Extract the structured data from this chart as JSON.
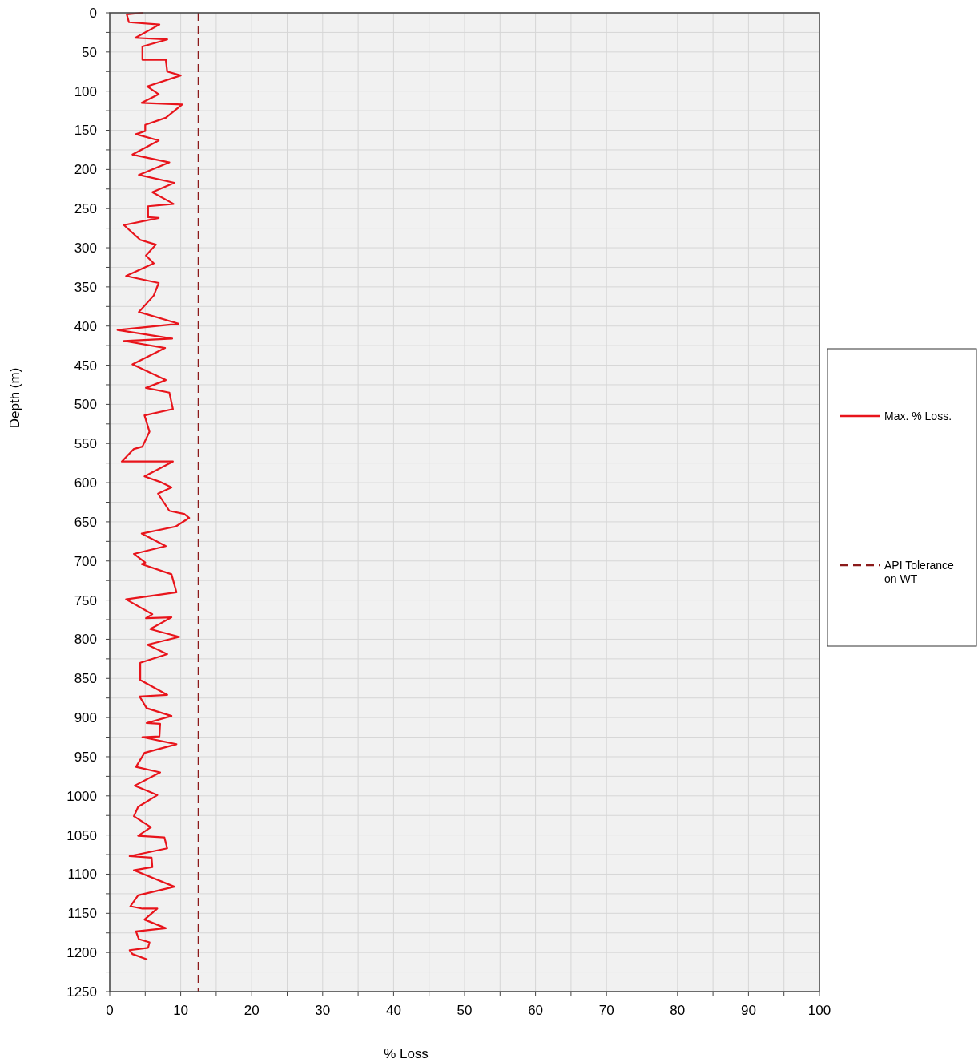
{
  "chart_data": {
    "type": "line",
    "xlabel": "% Loss",
    "ylabel": "Depth (m)",
    "xlim": [
      0,
      100
    ],
    "ylim": [
      1250,
      0
    ],
    "xticks": [
      0,
      {
        "value": 5,
        "label": null
      },
      10,
      {
        "value": 15,
        "label": null
      },
      20,
      {
        "value": 25,
        "label": null
      },
      30,
      {
        "value": 35,
        "label": null
      },
      40,
      {
        "value": 45,
        "label": null
      },
      50,
      {
        "value": 55,
        "label": null
      },
      60,
      {
        "value": 65,
        "label": null
      },
      70,
      {
        "value": 75,
        "label": null
      },
      80,
      {
        "value": 85,
        "label": null
      },
      90,
      {
        "value": 95,
        "label": null
      },
      100
    ],
    "yticks": [
      0,
      {
        "value": 25,
        "label": null
      },
      50,
      {
        "value": 75,
        "label": null
      },
      100,
      {
        "value": 125,
        "label": null
      },
      150,
      {
        "value": 175,
        "label": null
      },
      200,
      {
        "value": 225,
        "label": null
      },
      250,
      {
        "value": 275,
        "label": null
      },
      300,
      {
        "value": 325,
        "label": null
      },
      350,
      {
        "value": 375,
        "label": null
      },
      400,
      {
        "value": 425,
        "label": null
      },
      450,
      {
        "value": 475,
        "label": null
      },
      500,
      {
        "value": 525,
        "label": null
      },
      550,
      {
        "value": 575,
        "label": null
      },
      600,
      {
        "value": 625,
        "label": null
      },
      650,
      {
        "value": 675,
        "label": null
      },
      700,
      {
        "value": 725,
        "label": null
      },
      750,
      {
        "value": 775,
        "label": null
      },
      800,
      {
        "value": 825,
        "label": null
      },
      850,
      {
        "value": 875,
        "label": null
      },
      900,
      {
        "value": 925,
        "label": null
      },
      950,
      {
        "value": 975,
        "label": null
      },
      1000,
      {
        "value": 1025,
        "label": null
      },
      1050,
      {
        "value": 1075,
        "label": null
      },
      1100,
      {
        "value": 1125,
        "label": null
      },
      1150,
      {
        "value": 1175,
        "label": null
      },
      1200,
      {
        "value": 1225,
        "label": null
      },
      1250
    ],
    "grid": true,
    "legend": "right",
    "line_style": "solid",
    "series": [
      {
        "name": "Max. % Loss.",
        "color": "#e8141b",
        "x": [
          4.7,
          2.4,
          2.7,
          7.0,
          3.6,
          8.1,
          4.6,
          4.6,
          7.9,
          8.1,
          10.0,
          5.3,
          6.9,
          4.5,
          10.2,
          7.9,
          5.0,
          5.0,
          3.7,
          6.9,
          3.2,
          8.4,
          4.1,
          9.1,
          6.0,
          9.0,
          5.4,
          5.4,
          6.9,
          2.0,
          4.3,
          6.5,
          5.1,
          6.2,
          2.3,
          6.9,
          6.2,
          4.1,
          9.7,
          1.1,
          8.8,
          2.0,
          7.8,
          3.2,
          7.9,
          5.1,
          8.4,
          8.9,
          4.9,
          5.6,
          4.6,
          3.4,
          1.7,
          8.9,
          4.9,
          7.1,
          8.7,
          6.8,
          8.4,
          10.5,
          11.2,
          9.3,
          4.5,
          7.9,
          3.4,
          5.0,
          4.5,
          8.7,
          9.4,
          2.3,
          6.0,
          5.1,
          8.7,
          5.7,
          9.8,
          5.3,
          8.1,
          4.3,
          4.3,
          8.1,
          4.2,
          5.2,
          8.7,
          5.2,
          7.1,
          7.0,
          4.6,
          9.4,
          4.9,
          3.7,
          7.1,
          3.5,
          6.7,
          4.0,
          3.4,
          5.8,
          4.0,
          7.7,
          8.1,
          2.8,
          5.9,
          6.0,
          3.4,
          9.1,
          4.0,
          2.9,
          4.6,
          6.7,
          4.9,
          7.9,
          3.7,
          4.1,
          5.6,
          5.4,
          2.8,
          3.2,
          5.3
        ],
        "values": [
          0,
          2,
          12,
          15,
          32,
          34,
          43,
          60,
          60,
          75,
          80,
          94,
          104,
          115,
          117,
          134,
          143,
          151,
          155,
          163,
          181,
          191,
          207,
          217,
          229,
          244,
          247,
          261,
          262,
          271,
          290,
          296,
          310,
          320,
          336,
          345,
          361,
          382,
          397,
          405,
          416,
          419,
          428,
          449,
          469,
          479,
          485,
          506,
          514,
          535,
          554,
          557,
          573,
          573,
          592,
          599,
          606,
          614,
          636,
          640,
          645,
          656,
          665,
          681,
          691,
          702,
          704,
          717,
          740,
          749,
          768,
          773,
          772,
          787,
          797,
          807,
          819,
          830,
          852,
          871,
          873,
          888,
          898,
          907,
          908,
          924,
          925,
          934,
          945,
          963,
          970,
          987,
          999,
          1014,
          1026,
          1040,
          1051,
          1053,
          1067,
          1077,
          1079,
          1091,
          1095,
          1116,
          1127,
          1141,
          1144,
          1144,
          1158,
          1169,
          1173,
          1183,
          1187,
          1194,
          1197,
          1202,
          1209
        ]
      },
      {
        "name": "API Tolerance on WT",
        "color": "#8b1a1a",
        "line_style": "dashed",
        "x": [
          12.5,
          12.5
        ],
        "values": [
          0,
          1250
        ]
      }
    ]
  }
}
